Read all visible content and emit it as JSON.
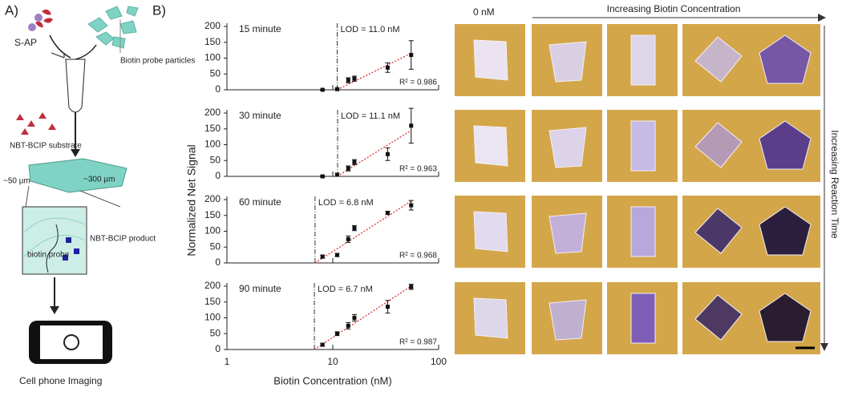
{
  "panel_a": {
    "label": "A)",
    "s_ap": "S-AP",
    "probe_particles": "Biotin probe particles",
    "substrate": "NBT-BCIP substrate",
    "thickness": "~50 µm",
    "width": "~300 µm",
    "biotin_probe": "biotin probe",
    "product": "NBT-BCIP product",
    "imaging": "Cell phone Imaging"
  },
  "panel_b": {
    "label": "B)"
  },
  "panel_c": {
    "zero": "0 nM",
    "x_arrow": "Increasing Biotin Concentration",
    "y_arrow": "Increasing Reaction Time"
  },
  "chart_data": [
    {
      "type": "scatter",
      "title": "15 minute",
      "x": [
        8,
        11,
        14,
        16,
        33,
        55
      ],
      "values": [
        0,
        2,
        30,
        35,
        70,
        110
      ],
      "errors": [
        2,
        3,
        8,
        8,
        15,
        45
      ],
      "color": "#111111",
      "lod": 11.0,
      "lod_label": "LOD = 11.0 nM",
      "r2_label": "R² = 0.986",
      "fit_x": [
        11,
        55
      ],
      "fit_y": [
        0,
        115
      ],
      "fit_color": "#e03030",
      "xlim": [
        1,
        100
      ],
      "xticks": [
        1,
        10,
        100
      ],
      "ylim": [
        0,
        200
      ],
      "yticks": [
        0,
        50,
        100,
        150,
        200
      ],
      "log_x": true
    },
    {
      "type": "scatter",
      "title": "30 minute",
      "ylabel": "Normalized Net Signal",
      "x": [
        8,
        11,
        14,
        16,
        33,
        55
      ],
      "values": [
        0,
        5,
        25,
        45,
        70,
        160
      ],
      "errors": [
        3,
        5,
        8,
        8,
        20,
        55
      ],
      "color": "#111111",
      "lod": 11.1,
      "lod_label": "LOD = 11.1 nM",
      "r2_label": "R² = 0.963",
      "fit_x": [
        11,
        55
      ],
      "fit_y": [
        0,
        145
      ],
      "fit_color": "#e03030",
      "xlim": [
        1,
        100
      ],
      "xticks": [
        1,
        10,
        100
      ],
      "ylim": [
        0,
        200
      ],
      "yticks": [
        0,
        50,
        100,
        150,
        200
      ],
      "log_x": true
    },
    {
      "type": "scatter",
      "title": "60 minute",
      "x": [
        8,
        11,
        14,
        16,
        33,
        55
      ],
      "values": [
        20,
        25,
        75,
        110,
        158,
        182
      ],
      "errors": [
        5,
        5,
        10,
        8,
        5,
        15
      ],
      "color": "#111111",
      "lod": 6.8,
      "lod_label": "LOD = 6.8 nM",
      "r2_label": "R² = 0.968",
      "fit_x": [
        6.8,
        55
      ],
      "fit_y": [
        0,
        195
      ],
      "fit_color": "#e03030",
      "xlim": [
        1,
        100
      ],
      "xticks": [
        1,
        10,
        100
      ],
      "ylim": [
        0,
        200
      ],
      "yticks": [
        0,
        50,
        100,
        150,
        200
      ],
      "log_x": true
    },
    {
      "type": "scatter",
      "title": "90 minute",
      "xlabel": "Biotin Concentration (nM)",
      "x": [
        8,
        11,
        14,
        16,
        33,
        55
      ],
      "values": [
        15,
        50,
        75,
        100,
        135,
        198
      ],
      "errors": [
        5,
        6,
        10,
        10,
        20,
        8
      ],
      "color": "#111111",
      "lod": 6.7,
      "lod_label": "LOD = 6.7 nM",
      "r2_label": "R² = 0.987",
      "fit_x": [
        6.7,
        55
      ],
      "fit_y": [
        0,
        200
      ],
      "fit_color": "#e03030",
      "xlim": [
        1,
        100
      ],
      "xticks": [
        1,
        10,
        100
      ],
      "ylim": [
        0,
        200
      ],
      "yticks": [
        0,
        50,
        100,
        150,
        200
      ],
      "log_x": true
    }
  ]
}
